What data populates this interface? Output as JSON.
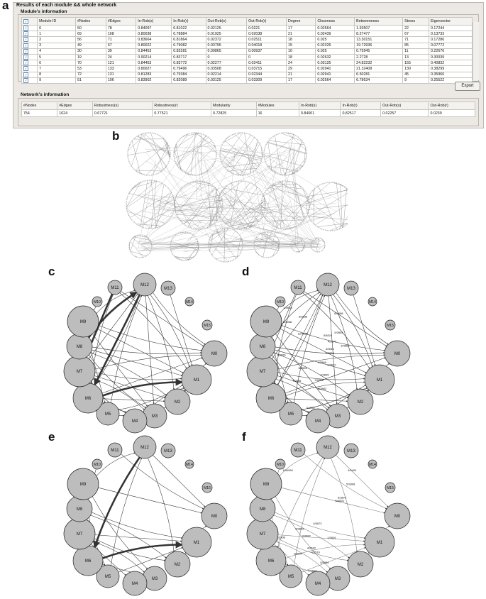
{
  "labels": {
    "a": "a",
    "b": "b",
    "c": "c",
    "d": "d",
    "e": "e",
    "f": "f"
  },
  "window": {
    "title": "Results of each module && whole network",
    "module_group": "Module's information",
    "network_group": "Network's information",
    "export_label": "Export"
  },
  "module_table": {
    "columns": [
      "Module ID",
      "#Nodes",
      "#Edges",
      "In-Rob(s)",
      "In-Rob(r)",
      "Out-Rob(s)",
      "Out-Rob(r)",
      "Degree",
      "Closeness",
      "Betweenness",
      "Stress",
      "Eigenvector"
    ],
    "rows": [
      [
        "0",
        "50",
        "78",
        "0.84097",
        "0.81022",
        "0.02125",
        "0.0221",
        "17",
        "0.02564",
        "1.93507",
        "22",
        "0.17244"
      ],
      [
        "1",
        "69",
        "168",
        "0.80038",
        "0.78884",
        "0.01925",
        "0.02038",
        "21",
        "0.02439",
        "8.27477",
        "67",
        "0.13733"
      ],
      [
        "2",
        "56",
        "71",
        "0.83664",
        "0.81864",
        "0.02372",
        "0.02511",
        "18",
        "0.025",
        "13.30151",
        "71",
        "0.17286"
      ],
      [
        "3",
        "49",
        "67",
        "0.80022",
        "0.79082",
        "0.03795",
        "0.04018",
        "15",
        "0.02326",
        "19.72936",
        "85",
        "0.07772"
      ],
      [
        "4",
        "30",
        "39",
        "0.84453",
        "0.83281",
        "0.00865",
        "0.00937",
        "10",
        "0.025",
        "0.75945",
        "11",
        "0.22676"
      ],
      [
        "5",
        "19",
        "24",
        "0.90214",
        "0.83717",
        "0",
        "0",
        "18",
        "0.02632",
        "2.2728",
        "13",
        "0.30039"
      ],
      [
        "6",
        "70",
        "121",
        "0.84453",
        "0.83772",
        "0.02277",
        "0.02411",
        "24",
        "0.03125",
        "24.82232",
        "155",
        "0.40832"
      ],
      [
        "7",
        "53",
        "133",
        "0.80027",
        "0.79496",
        "0.03508",
        "0.03715",
        "29",
        "0.02941",
        "21.32408",
        "130",
        "0.38299"
      ],
      [
        "8",
        "72",
        "131",
        "0.81283",
        "0.79384",
        "0.02214",
        "0.02344",
        "21",
        "0.02941",
        "6.50281",
        "45",
        "0.35966"
      ],
      [
        "9",
        "51",
        "106",
        "0.83902",
        "0.82089",
        "0.03125",
        "0.03309",
        "17",
        "0.02564",
        "6.78634",
        "9",
        "0.25522"
      ]
    ]
  },
  "network_table": {
    "columns": [
      "#Nodes",
      "#Edges",
      "Robustness(s)",
      "Robustness(r)",
      "Modularity",
      "#Modules",
      "In-Rob(s)",
      "In-Rob(r)",
      "Out-Rob(s)",
      "Out-Rob(r)"
    ],
    "values": [
      "754",
      "1624",
      "0.67721",
      "0.77521",
      "0.72825",
      "16",
      "0.84001",
      "0.82517",
      "0.02257",
      "0.0239"
    ]
  },
  "modules": [
    "M0",
    "M1",
    "M2",
    "M3",
    "M4",
    "M5",
    "M6",
    "M7",
    "M8",
    "M9",
    "M10",
    "M11",
    "M12",
    "M13",
    "M14",
    "M15"
  ],
  "d_edge_labels": [
    "1/4928",
    "1/3928",
    "5/3824",
    "1/3968",
    "3/4672",
    "4/3510",
    "5/3526",
    "6/3636",
    "2/4665",
    "1/3968",
    "7/2686",
    "12/4828",
    "4/3882",
    "3/2656",
    "3/3908",
    "5/3904",
    "8/4688",
    "1/3826",
    "3/4669",
    "4/2672"
  ],
  "f_edge_labels": [
    "1/34266",
    "6/4826",
    "5/3672",
    "8/3826",
    "1/3826",
    "4/2692",
    "4/3510",
    "4/3519",
    "5/2808",
    "5/3872",
    "4/4424",
    "3/4082",
    "1/3904",
    "5/3904",
    "2/3908",
    "3/3826"
  ]
}
